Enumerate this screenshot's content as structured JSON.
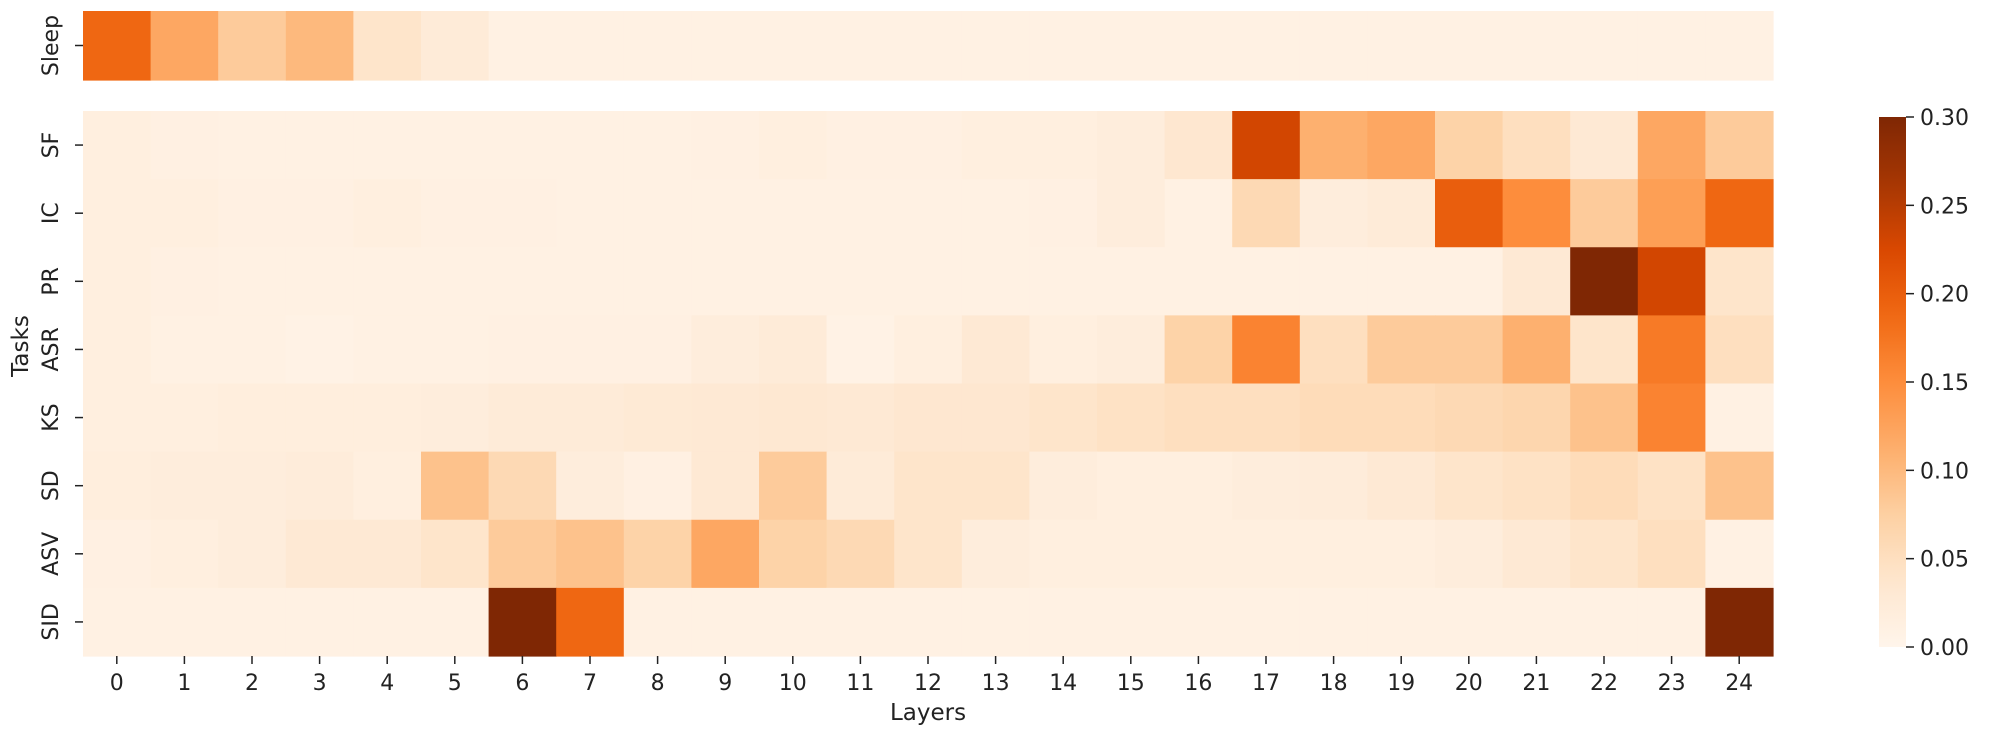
{
  "chart_data": {
    "type": "heatmap",
    "xlabel": "Layers",
    "ylabel": "Tasks",
    "x_categories": [
      "0",
      "1",
      "2",
      "3",
      "4",
      "5",
      "6",
      "7",
      "8",
      "9",
      "10",
      "11",
      "12",
      "13",
      "14",
      "15",
      "16",
      "17",
      "18",
      "19",
      "20",
      "21",
      "22",
      "23",
      "24"
    ],
    "top_panel": {
      "rows": [
        "Sleep"
      ],
      "values": [
        [
          0.19,
          0.12,
          0.08,
          0.1,
          0.04,
          0.025,
          0.01,
          0.01,
          0.01,
          0.01,
          0.01,
          0.01,
          0.01,
          0.01,
          0.01,
          0.01,
          0.01,
          0.01,
          0.01,
          0.01,
          0.01,
          0.01,
          0.01,
          0.01,
          0.01
        ]
      ]
    },
    "main_panel": {
      "rows": [
        "SF",
        "IC",
        "PR",
        "ASR",
        "KS",
        "SD",
        "ASV",
        "SID"
      ],
      "values": [
        [
          0.015,
          0.012,
          0.01,
          0.01,
          0.01,
          0.01,
          0.01,
          0.01,
          0.01,
          0.012,
          0.015,
          0.012,
          0.012,
          0.015,
          0.015,
          0.02,
          0.035,
          0.23,
          0.11,
          0.12,
          0.07,
          0.05,
          0.03,
          0.12,
          0.08
        ],
        [
          0.015,
          0.015,
          0.012,
          0.012,
          0.015,
          0.012,
          0.012,
          0.01,
          0.01,
          0.01,
          0.01,
          0.01,
          0.01,
          0.01,
          0.012,
          0.02,
          0.01,
          0.06,
          0.02,
          0.025,
          0.2,
          0.15,
          0.08,
          0.13,
          0.19
        ],
        [
          0.015,
          0.012,
          0.01,
          0.01,
          0.01,
          0.01,
          0.01,
          0.01,
          0.01,
          0.01,
          0.01,
          0.01,
          0.01,
          0.01,
          0.01,
          0.01,
          0.01,
          0.01,
          0.01,
          0.01,
          0.01,
          0.03,
          0.3,
          0.23,
          0.04
        ],
        [
          0.015,
          0.01,
          0.01,
          0.008,
          0.01,
          0.01,
          0.012,
          0.012,
          0.012,
          0.02,
          0.025,
          0.008,
          0.015,
          0.03,
          0.015,
          0.02,
          0.07,
          0.16,
          0.05,
          0.08,
          0.08,
          0.11,
          0.04,
          0.17,
          0.05
        ],
        [
          0.015,
          0.015,
          0.018,
          0.018,
          0.018,
          0.02,
          0.025,
          0.025,
          0.028,
          0.03,
          0.032,
          0.03,
          0.035,
          0.035,
          0.04,
          0.045,
          0.05,
          0.05,
          0.055,
          0.055,
          0.06,
          0.065,
          0.09,
          0.16,
          0.01
        ],
        [
          0.018,
          0.02,
          0.02,
          0.022,
          0.015,
          0.09,
          0.06,
          0.02,
          0.012,
          0.03,
          0.08,
          0.025,
          0.04,
          0.04,
          0.02,
          0.015,
          0.015,
          0.02,
          0.022,
          0.03,
          0.04,
          0.045,
          0.055,
          0.045,
          0.09
        ],
        [
          0.012,
          0.015,
          0.02,
          0.03,
          0.03,
          0.04,
          0.08,
          0.09,
          0.07,
          0.12,
          0.07,
          0.06,
          0.04,
          0.02,
          0.015,
          0.015,
          0.015,
          0.015,
          0.015,
          0.015,
          0.02,
          0.03,
          0.04,
          0.05,
          0.01
        ],
        [
          0.01,
          0.01,
          0.01,
          0.01,
          0.01,
          0.01,
          0.3,
          0.19,
          0.01,
          0.01,
          0.01,
          0.01,
          0.01,
          0.01,
          0.01,
          0.01,
          0.01,
          0.01,
          0.01,
          0.01,
          0.01,
          0.01,
          0.01,
          0.01,
          0.3
        ]
      ]
    },
    "colorbar": {
      "min": 0.0,
      "max": 0.3,
      "colormap": "Oranges",
      "ticks": [
        "0.00",
        "0.05",
        "0.10",
        "0.15",
        "0.20",
        "0.25",
        "0.30"
      ]
    },
    "colors": {
      "low": "#fff5eb",
      "high": "#7f2704"
    }
  }
}
